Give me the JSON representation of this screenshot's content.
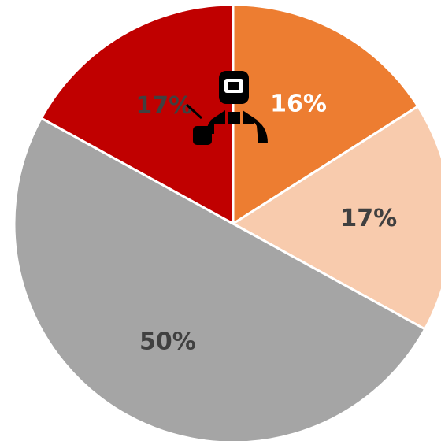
{
  "chart_data": {
    "type": "pie",
    "categories": [
      null,
      null,
      null,
      null
    ],
    "values": [
      16,
      17,
      50,
      17
    ],
    "value_labels": [
      "16%",
      "17%",
      "50%",
      "17%"
    ],
    "colors": [
      "#ed7d31",
      "#f8cbad",
      "#a5a5a5",
      "#c00000"
    ],
    "label_colors": [
      "#ffffff",
      "#404040",
      "#404040",
      "#404040"
    ]
  }
}
